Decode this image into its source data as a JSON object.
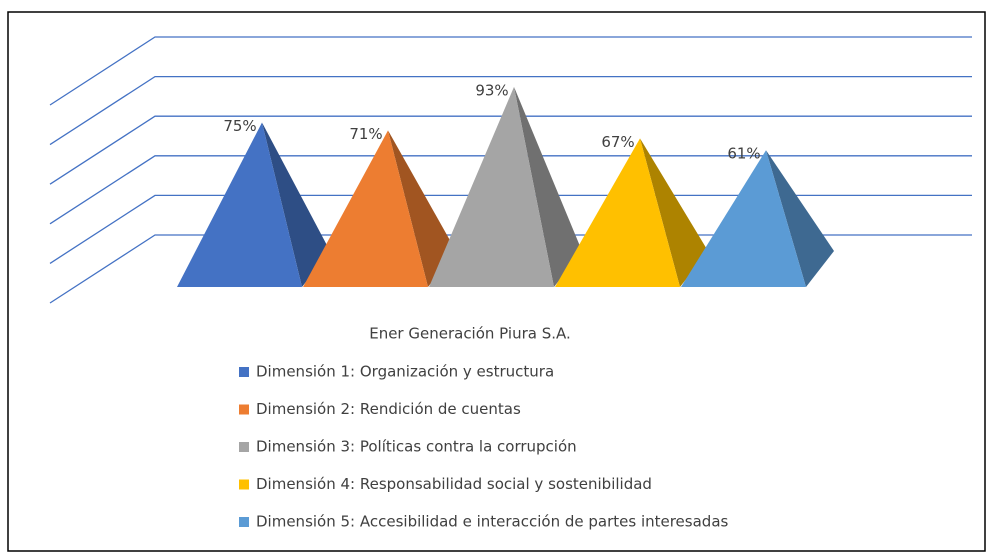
{
  "chart_data": {
    "type": "pyramid3d",
    "categories": [
      "Ener Generación Piura S.A."
    ],
    "series": [
      {
        "name": "Dimensión 1: Organización y estructura",
        "color": "#4472c4",
        "values": [
          75
        ],
        "value_labels": [
          "75%"
        ]
      },
      {
        "name": "Dimensión 2: Rendición de cuentas",
        "color": "#ed7d31",
        "values": [
          71
        ],
        "value_labels": [
          "71%"
        ]
      },
      {
        "name": "Dimensión 3: Políticas contra la corrupción",
        "color": "#a5a5a5",
        "values": [
          93
        ],
        "value_labels": [
          "93%"
        ]
      },
      {
        "name": "Dimensión 4: Responsabilidad social y sostenibilidad",
        "color": "#ffc000",
        "values": [
          67
        ],
        "value_labels": [
          "67%"
        ]
      },
      {
        "name": "Dimensión 5: Accesibilidad e interacción de partes interesadas",
        "color": "#5b9bd5",
        "values": [
          61
        ],
        "value_labels": [
          "61%"
        ]
      }
    ],
    "ylim": [
      0,
      100
    ],
    "yticks": [
      0,
      20,
      40,
      60,
      80,
      100
    ],
    "grid": true,
    "legend": "bottom"
  }
}
